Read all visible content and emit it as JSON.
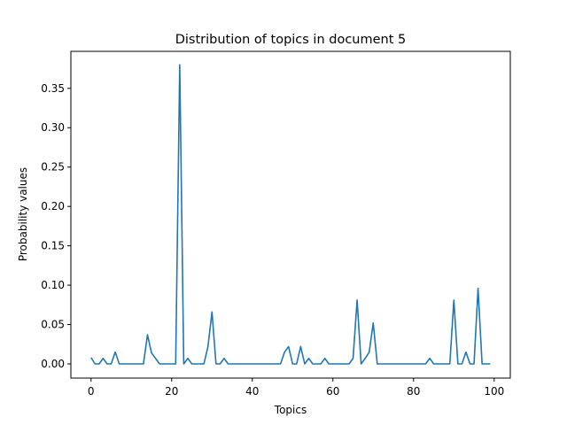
{
  "chart_data": {
    "type": "line",
    "title": "Distribution of topics in document 5",
    "xlabel": "Topics",
    "ylabel": "Probability values",
    "xlim": [
      -5,
      104
    ],
    "ylim": [
      -0.018,
      0.397
    ],
    "x_ticks": [
      0,
      20,
      40,
      60,
      80,
      100
    ],
    "x_tick_labels": [
      "0",
      "20",
      "40",
      "60",
      "80",
      "100"
    ],
    "y_ticks": [
      0,
      0.05,
      0.1,
      0.15,
      0.2,
      0.25,
      0.3,
      0.35
    ],
    "y_tick_labels": [
      "0.00",
      "0.05",
      "0.10",
      "0.15",
      "0.20",
      "0.25",
      "0.30",
      "0.35"
    ],
    "grid": false,
    "legend": "none",
    "series": [
      {
        "color": "#1f77b4",
        "x": [
          0,
          1,
          2,
          3,
          4,
          5,
          6,
          7,
          8,
          9,
          10,
          11,
          12,
          13,
          14,
          15,
          16,
          17,
          18,
          19,
          20,
          21,
          22,
          23,
          24,
          25,
          26,
          27,
          28,
          29,
          30,
          31,
          32,
          33,
          34,
          35,
          36,
          37,
          38,
          39,
          40,
          41,
          42,
          43,
          44,
          45,
          46,
          47,
          48,
          49,
          50,
          51,
          52,
          53,
          54,
          55,
          56,
          57,
          58,
          59,
          60,
          61,
          62,
          63,
          64,
          65,
          66,
          67,
          68,
          69,
          70,
          71,
          72,
          73,
          74,
          75,
          76,
          77,
          78,
          79,
          80,
          81,
          82,
          83,
          84,
          85,
          86,
          87,
          88,
          89,
          90,
          91,
          92,
          93,
          94,
          95,
          96,
          97,
          98,
          99
        ],
        "values": [
          0.008,
          0,
          0,
          0.007,
          0,
          0,
          0.015,
          0,
          0,
          0,
          0,
          0,
          0,
          0,
          0.037,
          0.014,
          0.007,
          0,
          0,
          0,
          0,
          0,
          0.38,
          0,
          0.007,
          0,
          0,
          0,
          0,
          0.022,
          0.066,
          0,
          0,
          0.007,
          0,
          0,
          0,
          0,
          0,
          0,
          0,
          0,
          0,
          0,
          0,
          0,
          0,
          0,
          0.015,
          0.022,
          0,
          0,
          0.022,
          0,
          0.007,
          0,
          0,
          0,
          0.007,
          0,
          0,
          0,
          0,
          0,
          0,
          0.007,
          0.081,
          0,
          0.007,
          0.015,
          0.052,
          0,
          0,
          0,
          0,
          0,
          0,
          0,
          0,
          0,
          0,
          0,
          0,
          0,
          0.007,
          0,
          0,
          0,
          0,
          0,
          0.081,
          0,
          0,
          0.015,
          0,
          0,
          0.096,
          0,
          0,
          0
        ]
      }
    ]
  }
}
